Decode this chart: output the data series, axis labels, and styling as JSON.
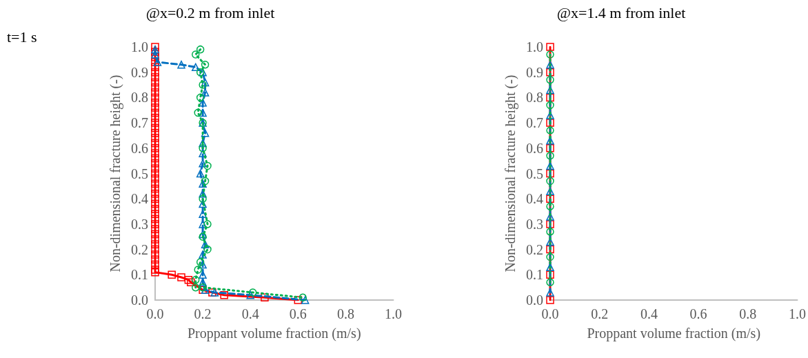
{
  "chart_data": [
    {
      "type": "line",
      "title": "@x=0.2 m from inlet",
      "xlabel": "Proppant volume fraction (m/s)",
      "ylabel": "Non-dimensional fracture height (-)",
      "annotations": [
        "t=1 s"
      ],
      "xlim": [
        0,
        1
      ],
      "xticks": [
        {
          "value": 0,
          "label": "0.0"
        },
        {
          "value": 0.2,
          "label": "0.2"
        },
        {
          "value": 0.4,
          "label": "0.4"
        },
        {
          "value": 0.6,
          "label": "0.6"
        },
        {
          "value": 0.8,
          "label": "0.8"
        },
        {
          "value": 1,
          "label": "1.0"
        }
      ],
      "ylim": [
        0,
        1
      ],
      "yticks": [
        {
          "value": 0,
          "label": "0.0"
        },
        {
          "value": 0.1,
          "label": "0.1"
        },
        {
          "value": 0.2,
          "label": "0.2"
        },
        {
          "value": 0.3,
          "label": "0.3"
        },
        {
          "value": 0.4,
          "label": "0.4"
        },
        {
          "value": 0.5,
          "label": "0.5"
        },
        {
          "value": 0.6,
          "label": "0.6"
        },
        {
          "value": 0.7,
          "label": "0.7"
        },
        {
          "value": 0.8,
          "label": "0.8"
        },
        {
          "value": 0.9,
          "label": "0.9"
        },
        {
          "value": 1,
          "label": "1.0"
        }
      ],
      "grid": false,
      "series": [
        {
          "color": "#ff0000",
          "marker": "square",
          "line_style": "solid",
          "x": [
            0,
            0,
            0,
            0,
            0,
            0,
            0,
            0,
            0,
            0,
            0,
            0,
            0,
            0,
            0,
            0,
            0,
            0,
            0,
            0,
            0,
            0,
            0,
            0,
            0,
            0,
            0,
            0,
            0,
            0,
            0,
            0,
            0,
            0,
            0,
            0,
            0,
            0,
            0,
            0,
            0,
            0,
            0,
            0,
            0,
            0,
            0.07,
            0.11,
            0.14,
            0.15,
            0.2,
            0.24,
            0.29,
            0.46,
            0.6
          ],
          "values": [
            1,
            0.98,
            0.96,
            0.94,
            0.92,
            0.9,
            0.88,
            0.86,
            0.84,
            0.82,
            0.8,
            0.78,
            0.76,
            0.74,
            0.72,
            0.7,
            0.68,
            0.66,
            0.64,
            0.62,
            0.6,
            0.58,
            0.56,
            0.54,
            0.52,
            0.5,
            0.48,
            0.46,
            0.44,
            0.42,
            0.4,
            0.38,
            0.36,
            0.34,
            0.32,
            0.3,
            0.28,
            0.26,
            0.24,
            0.22,
            0.2,
            0.18,
            0.16,
            0.14,
            0.12,
            0.11,
            0.1,
            0.09,
            0.08,
            0.07,
            0.04,
            0.03,
            0.02,
            0.01,
            0
          ]
        },
        {
          "color": "#0070c0",
          "marker": "triangle",
          "line_style": "dashed",
          "x": [
            0,
            0,
            0.01,
            0.11,
            0.17,
            0.2,
            0.21,
            0.21,
            0.2,
            0.2,
            0.2,
            0.21,
            0.2,
            0.2,
            0.2,
            0.19,
            0.2,
            0.2,
            0.2,
            0.2,
            0.2,
            0.2,
            0.21,
            0.2,
            0.2,
            0.2,
            0.2,
            0.21,
            0.25,
            0.4,
            0.63
          ],
          "values": [
            0.99,
            0.97,
            0.94,
            0.93,
            0.92,
            0.9,
            0.86,
            0.82,
            0.78,
            0.74,
            0.7,
            0.66,
            0.62,
            0.58,
            0.54,
            0.5,
            0.46,
            0.42,
            0.38,
            0.34,
            0.3,
            0.26,
            0.22,
            0.18,
            0.14,
            0.1,
            0.07,
            0.04,
            0.03,
            0.02,
            0
          ]
        },
        {
          "color": "#00b050",
          "marker": "circle",
          "line_style": "dotted",
          "x": [
            0.19,
            0.17,
            0.21,
            0.19,
            0.2,
            0.19,
            0.18,
            0.2,
            0.2,
            0.22,
            0.21,
            0.2,
            0.22,
            0.2,
            0.22,
            0.19,
            0.18,
            0.17,
            0.17,
            0.2,
            0.41,
            0.62
          ],
          "values": [
            0.99,
            0.97,
            0.93,
            0.9,
            0.85,
            0.8,
            0.74,
            0.7,
            0.6,
            0.53,
            0.47,
            0.4,
            0.3,
            0.25,
            0.2,
            0.15,
            0.12,
            0.08,
            0.05,
            0.05,
            0.03,
            0.01
          ]
        }
      ]
    },
    {
      "type": "line",
      "title": "@x=1.4 m from inlet",
      "xlabel": "Proppant volume fraction (m/s)",
      "ylabel": "Non-dimensional fracture height (-)",
      "xlim": [
        0,
        1
      ],
      "xticks": [
        {
          "value": 0,
          "label": "0.0"
        },
        {
          "value": 0.2,
          "label": "0.2"
        },
        {
          "value": 0.4,
          "label": "0.4"
        },
        {
          "value": 0.6,
          "label": "0.6"
        },
        {
          "value": 0.8,
          "label": "0.8"
        },
        {
          "value": 1,
          "label": "1.0"
        }
      ],
      "ylim": [
        0,
        1
      ],
      "yticks": [
        {
          "value": 0,
          "label": "0.0"
        },
        {
          "value": 0.1,
          "label": "0.1"
        },
        {
          "value": 0.2,
          "label": "0.2"
        },
        {
          "value": 0.3,
          "label": "0.3"
        },
        {
          "value": 0.4,
          "label": "0.4"
        },
        {
          "value": 0.5,
          "label": "0.5"
        },
        {
          "value": 0.6,
          "label": "0.6"
        },
        {
          "value": 0.7,
          "label": "0.7"
        },
        {
          "value": 0.8,
          "label": "0.8"
        },
        {
          "value": 0.9,
          "label": "0.9"
        },
        {
          "value": 1,
          "label": "1.0"
        }
      ],
      "grid": false,
      "series": [
        {
          "color": "#ff0000",
          "marker": "square",
          "line_style": "solid",
          "x": [
            0,
            0,
            0,
            0,
            0,
            0,
            0,
            0,
            0,
            0,
            0
          ],
          "values": [
            1,
            0.9,
            0.8,
            0.7,
            0.6,
            0.5,
            0.4,
            0.3,
            0.2,
            0.1,
            0
          ]
        },
        {
          "color": "#0070c0",
          "marker": "triangle",
          "line_style": "dashed",
          "x": [
            0,
            0,
            0,
            0,
            0,
            0,
            0,
            0,
            0,
            0
          ],
          "values": [
            0.93,
            0.83,
            0.73,
            0.63,
            0.53,
            0.43,
            0.33,
            0.23,
            0.13,
            0.03
          ]
        },
        {
          "color": "#00b050",
          "marker": "circle",
          "line_style": "dotted",
          "x": [
            0,
            0,
            0,
            0,
            0,
            0,
            0,
            0,
            0,
            0
          ],
          "values": [
            0.97,
            0.87,
            0.77,
            0.67,
            0.57,
            0.47,
            0.37,
            0.27,
            0.17,
            0.07
          ]
        }
      ]
    }
  ]
}
